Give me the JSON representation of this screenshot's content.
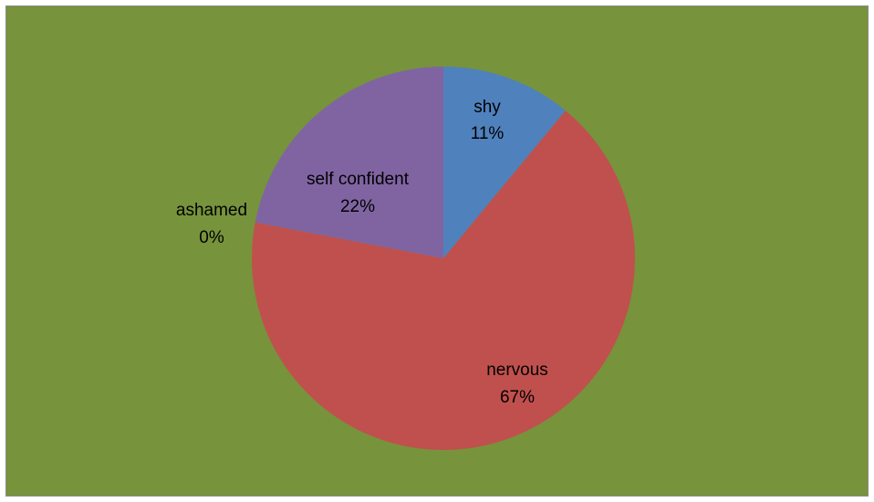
{
  "chart_data": {
    "type": "pie",
    "title": "",
    "categories": [
      "shy",
      "nervous",
      "ashamed",
      "self confident"
    ],
    "values": [
      11,
      67,
      0,
      22
    ],
    "colors": [
      "#4f81bd",
      "#c0504d",
      "#9bbb59",
      "#8064a2"
    ],
    "data_labels": [
      {
        "name": "shy",
        "percent": "11%"
      },
      {
        "name": "nervous",
        "percent": "67%"
      },
      {
        "name": "ashamed",
        "percent": "0%"
      },
      {
        "name": "self confident",
        "percent": "22%"
      }
    ],
    "background": "#77933c",
    "legend": "none",
    "start_angle": "12 o'clock",
    "direction": "clockwise"
  }
}
